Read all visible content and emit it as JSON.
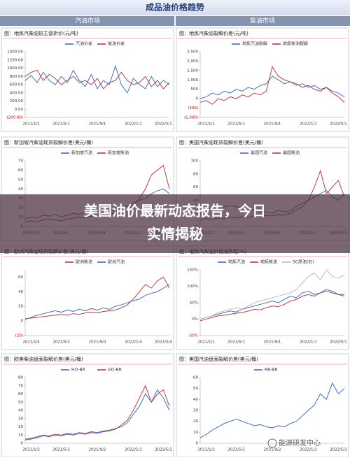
{
  "header": {
    "title": "成品油价格趋势",
    "sections": [
      "汽油市场",
      "柴油市场"
    ]
  },
  "headline": [
    "美国油价最新动态报告，今日",
    "实情揭秘"
  ],
  "watermark": "能源研发中心",
  "chart_data": [
    {
      "type": "line",
      "title": "图：地炼汽柴油较主营折价(元/吨)",
      "categories": [
        null,
        "2021/1/1",
        null,
        null,
        null,
        null,
        "2021/5/1",
        null,
        null,
        null,
        null,
        null,
        "2021/9/1",
        null,
        null,
        null,
        null,
        null,
        "2022/1/1",
        null,
        null,
        null,
        null,
        "2022/5/1",
        null
      ],
      "series": [
        {
          "name": "汽油价差",
          "color": "#2e63c4",
          "values": [
            700,
            820,
            650,
            900,
            700,
            600,
            800,
            650,
            950,
            700,
            550,
            850,
            500,
            700,
            600,
            1050,
            600,
            400,
            750,
            600,
            500,
            800,
            550,
            700,
            600
          ]
        },
        {
          "name": "柴油价差",
          "color": "#c0262d",
          "values": [
            800,
            900,
            950,
            700,
            850,
            750,
            600,
            700,
            800,
            650,
            700,
            600,
            750,
            500,
            650,
            700,
            900,
            700,
            600,
            650,
            800,
            550,
            700,
            500,
            650
          ]
        }
      ],
      "ylim": [
        -200,
        1400
      ],
      "yticks": [
        {
          "value": -200,
          "label": "(200.00)"
        },
        {
          "value": 0,
          "label": "0.00"
        },
        {
          "value": 200,
          "label": "200.00"
        },
        {
          "value": 400,
          "label": "400.00"
        },
        {
          "value": 600,
          "label": "600.00"
        },
        {
          "value": 800,
          "label": "800.00"
        },
        {
          "value": 1000,
          "label": "1000.00"
        },
        {
          "value": 1200,
          "label": "1200.00"
        },
        {
          "value": 1400,
          "label": "1400.00"
        }
      ]
    },
    {
      "type": "line",
      "title": "图：地炼汽柴油裂解价差(元/吨)",
      "categories": [
        null,
        "2021/1/1",
        null,
        null,
        null,
        null,
        "2021/5/1",
        null,
        null,
        null,
        null,
        null,
        "2021/9/1",
        null,
        null,
        null,
        null,
        null,
        "2022/1/1",
        null,
        null,
        null,
        null,
        "2022/5/1",
        null
      ],
      "series": [
        {
          "name": "地炼汽油裂解",
          "color": "#2e63c4",
          "values": [
            0,
            100,
            300,
            200,
            400,
            300,
            500,
            400,
            600,
            500,
            700,
            800,
            1200,
            1000,
            800,
            900,
            700,
            800,
            600,
            700,
            500,
            600,
            400,
            300,
            100
          ]
        },
        {
          "name": "地炼柴油裂解",
          "color": "#c0262d",
          "values": [
            -200,
            -100,
            -300,
            0,
            -100,
            100,
            0,
            200,
            100,
            300,
            200,
            400,
            1700,
            1200,
            1000,
            900,
            800,
            600,
            700,
            500,
            400,
            600,
            300,
            100,
            -200
          ]
        }
      ],
      "ylim": [
        -1000,
        2500
      ],
      "yticks": [
        {
          "value": -1000,
          "label": "(1,000)"
        },
        {
          "value": -500,
          "label": "(500)"
        },
        0,
        500,
        {
          "value": 1000,
          "label": "1,000"
        },
        {
          "value": 1500,
          "label": "1,500"
        },
        {
          "value": 2000,
          "label": "2,000"
        },
        {
          "value": 2500,
          "label": "2,500"
        }
      ]
    },
    {
      "type": "line",
      "title": "图：新加坡汽柴油现货裂解价差(美元/桶)",
      "categories": [
        null,
        "2021/1/1",
        null,
        null,
        null,
        null,
        "2021/5/1",
        null,
        null,
        null,
        null,
        null,
        "2021/9/1",
        null,
        null,
        null,
        null,
        null,
        "2022/1/1",
        null,
        null,
        null,
        null,
        "2022/5/1",
        null
      ],
      "series": [
        {
          "name": "新加坡汽油",
          "color": "#2e63c4",
          "values": [
            8,
            10,
            9,
            12,
            11,
            13,
            10,
            12,
            14,
            13,
            15,
            14,
            16,
            15,
            18,
            17,
            20,
            22,
            25,
            28,
            30,
            35,
            38,
            40,
            35
          ]
        },
        {
          "name": "新加坡柴油",
          "color": "#c0262d",
          "values": [
            5,
            6,
            5,
            7,
            8,
            7,
            6,
            8,
            9,
            10,
            9,
            11,
            12,
            11,
            13,
            14,
            16,
            18,
            22,
            30,
            40,
            55,
            60,
            65,
            40
          ]
        }
      ],
      "ylim": [
        0,
        70
      ],
      "yticks": [
        0,
        10,
        20,
        30,
        40,
        50,
        60,
        70
      ]
    },
    {
      "type": "line",
      "title": "图：美国汽柴油现货裂解价差(美元/桶)",
      "categories": [
        null,
        "2021/1/1",
        null,
        null,
        null,
        null,
        "2021/5/1",
        null,
        null,
        null,
        null,
        null,
        "2021/9/1",
        null,
        null,
        null,
        null,
        null,
        "2022/1/1",
        null,
        null,
        null,
        null,
        "2022/5/1",
        null
      ],
      "series": [
        {
          "name": "美国汽油",
          "color": "#2e63c4",
          "values": [
            20,
            22,
            25,
            28,
            30,
            32,
            30,
            28,
            26,
            25,
            24,
            22,
            20,
            25,
            22,
            24,
            30,
            35,
            40,
            45,
            50,
            55,
            45,
            40,
            50
          ]
        },
        {
          "name": "美国柴油",
          "color": "#c0262d",
          "values": [
            10,
            12,
            11,
            13,
            12,
            14,
            13,
            15,
            14,
            16,
            15,
            17,
            16,
            18,
            17,
            20,
            25,
            30,
            40,
            60,
            85,
            50,
            60,
            70,
            45
          ]
        }
      ],
      "ylim": [
        0,
        100
      ],
      "yticks": [
        0,
        20,
        40,
        60,
        80,
        100
      ]
    },
    {
      "type": "line",
      "title": "图：欧洲汽柴油现货裂解价差(美元/桶)",
      "categories": [
        null,
        "2021/1/4",
        null,
        null,
        null,
        null,
        "2021/5/4",
        null,
        null,
        null,
        null,
        null,
        "2021/9/4",
        null,
        null,
        null,
        null,
        null,
        "2022/1/4",
        null,
        null,
        null,
        null,
        "2022/5/4",
        null
      ],
      "series": [
        {
          "name": "欧洲柴油",
          "color": "#c0262d",
          "values": [
            3,
            4,
            5,
            6,
            7,
            8,
            9,
            8,
            10,
            9,
            11,
            12,
            11,
            13,
            14,
            15,
            18,
            22,
            30,
            40,
            50,
            45,
            55,
            60,
            45
          ]
        },
        {
          "name": "欧洲汽油",
          "color": "#2e63c4",
          "values": [
            2,
            5,
            8,
            10,
            12,
            14,
            12,
            15,
            13,
            16,
            14,
            17,
            15,
            18,
            16,
            20,
            22,
            25,
            28,
            30,
            35,
            38,
            40,
            45,
            50
          ]
        }
      ],
      "ylim": [
        -20,
        70
      ],
      "yticks": [
        {
          "value": -20,
          "label": "(20)"
        },
        0,
        20,
        40,
        60
      ]
    },
    {
      "type": "line",
      "title": "图：地炼汽柴油价格涨跌幅(%)",
      "categories": [
        null,
        "2021/1/1",
        null,
        null,
        null,
        null,
        "2021/5/1",
        null,
        null,
        null,
        null,
        null,
        "2021/9/1",
        null,
        null,
        null,
        null,
        null,
        "2022/1/1",
        null,
        null,
        null,
        null,
        "2022/5/1",
        null
      ],
      "series": [
        {
          "name": "地炼汽油",
          "color": "#2e63c4",
          "values": [
            0,
            5,
            10,
            15,
            20,
            25,
            22,
            30,
            35,
            40,
            45,
            50,
            55,
            50,
            60,
            70,
            65,
            80,
            85,
            75,
            80,
            90,
            85,
            75,
            70
          ]
        },
        {
          "name": "地炼柴油",
          "color": "#c0262d",
          "values": [
            -5,
            0,
            5,
            10,
            12,
            15,
            18,
            20,
            25,
            30,
            28,
            35,
            40,
            38,
            45,
            55,
            60,
            70,
            75,
            70,
            80,
            85,
            80,
            75,
            75
          ]
        },
        {
          "name": "SC原油(右)",
          "color": "#b5b5b5",
          "values": [
            0,
            5,
            10,
            20,
            25,
            30,
            35,
            30,
            40,
            50,
            55,
            60,
            65,
            70,
            75,
            80,
            90,
            110,
            130,
            140,
            120,
            150,
            130,
            125,
            135
          ]
        }
      ],
      "ylim": [
        -50,
        150
      ],
      "yticks": [
        {
          "value": -50,
          "label": "-50%"
        },
        {
          "value": 0,
          "label": "0%"
        },
        {
          "value": 50,
          "label": "50%"
        },
        {
          "value": 100,
          "label": "100%"
        },
        {
          "value": 150,
          "label": "150%"
        }
      ]
    },
    {
      "type": "line",
      "title": "图：欧美柴油盘面裂解价差(美元/桶)",
      "categories": [
        null,
        "2021/1/2",
        null,
        null,
        null,
        null,
        "2021/5/2",
        null,
        null,
        null,
        null,
        null,
        "2021/9/2",
        null,
        null,
        null,
        null,
        null,
        "2022/1/2",
        null,
        null,
        null,
        null,
        "2022/5/2",
        null
      ],
      "series": [
        {
          "name": "HO-BR",
          "color": "#2e63c4",
          "values": [
            5,
            6,
            8,
            10,
            9,
            11,
            10,
            12,
            11,
            13,
            12,
            14,
            13,
            15,
            16,
            18,
            20,
            25,
            35,
            45,
            60,
            50,
            65,
            55,
            40
          ]
        },
        {
          "name": "GO-BR",
          "color": "#c0262d",
          "values": [
            4,
            5,
            7,
            9,
            8,
            10,
            9,
            11,
            10,
            12,
            11,
            13,
            12,
            14,
            15,
            17,
            22,
            28,
            40,
            55,
            70,
            50,
            60,
            65,
            45
          ]
        }
      ],
      "ylim": [
        0,
        80
      ],
      "yticks": [
        0,
        10,
        20,
        30,
        40,
        50,
        60,
        70,
        80
      ]
    },
    {
      "type": "line",
      "title": "图：美国汽油盘面裂解价差(美元/桶)",
      "categories": [
        null,
        "2021/1/2",
        null,
        null,
        null,
        null,
        "2021/5/2",
        null,
        null,
        null,
        null,
        null,
        "2021/9/2",
        null,
        null,
        null,
        null,
        null,
        "2022/1/2",
        null,
        null,
        null,
        null,
        "2022/5/2",
        null
      ],
      "series": [
        {
          "name": "RB-BR",
          "color": "#2e63c4",
          "values": [
            5,
            8,
            12,
            15,
            18,
            20,
            22,
            20,
            18,
            16,
            17,
            15,
            14,
            16,
            15,
            18,
            20,
            25,
            30,
            35,
            45,
            40,
            55,
            45,
            50
          ]
        }
      ],
      "ylim": [
        0,
        60
      ],
      "yticks": [
        0,
        10,
        20,
        30,
        40,
        50,
        60
      ]
    }
  ]
}
